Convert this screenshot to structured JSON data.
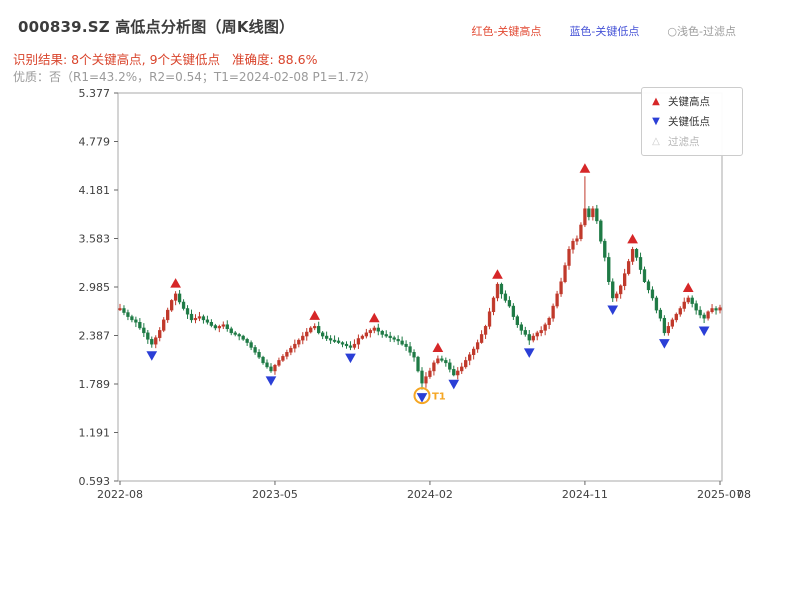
{
  "header": {
    "title": "000839.SZ 高低点分析图（周K线图）",
    "legend_top": [
      {
        "label": "红色-关键高点",
        "color": "#e24a33"
      },
      {
        "label": "蓝色-关键低点",
        "color": "#4653d7"
      },
      {
        "label": "○浅色-过滤点",
        "color": "#9b9b9b"
      }
    ],
    "result_line": "识别结果: 8个关键高点, 9个关键低点",
    "accuracy_line": "准确度: 88.6%",
    "quality_line": "优质：否（R1=43.2%，R2=0.54；T1=2024-02-08 P1=1.72）"
  },
  "legend_box": {
    "items": [
      {
        "label": "关键高点",
        "glyph": "▲",
        "color": "#d62728"
      },
      {
        "label": "关键低点",
        "glyph": "▼",
        "color": "#2b3fd6"
      },
      {
        "label": "过滤点",
        "glyph": "△",
        "color": "#c9c9c9"
      }
    ]
  },
  "chart_data": {
    "type": "candlestick",
    "title": "000839.SZ 高低点分析图（周K线图）",
    "ylim": [
      0.593,
      5.377
    ],
    "y_ticks": [
      5.377,
      4.779,
      4.181,
      3.583,
      2.985,
      2.387,
      1.789,
      1.191,
      0.593
    ],
    "x_ticks": [
      {
        "i": 0,
        "label": "2022-08"
      },
      {
        "i": 39,
        "label": "2023-05"
      },
      {
        "i": 78,
        "label": "2024-02"
      },
      {
        "i": 117,
        "label": "2024-11"
      },
      {
        "i": 151,
        "label": "2025-07"
      }
    ],
    "x_end_label": "08",
    "up_color": "#c0392b",
    "down_color": "#1e7a45",
    "closes": [
      2.72,
      2.67,
      2.62,
      2.58,
      2.55,
      2.48,
      2.42,
      2.34,
      2.28,
      2.36,
      2.45,
      2.58,
      2.7,
      2.82,
      2.9,
      2.8,
      2.72,
      2.65,
      2.58,
      2.6,
      2.62,
      2.58,
      2.55,
      2.51,
      2.48,
      2.5,
      2.52,
      2.47,
      2.42,
      2.4,
      2.38,
      2.34,
      2.3,
      2.24,
      2.18,
      2.12,
      2.05,
      2.0,
      1.95,
      2.02,
      2.08,
      2.13,
      2.18,
      2.23,
      2.28,
      2.33,
      2.38,
      2.43,
      2.48,
      2.5,
      2.42,
      2.38,
      2.35,
      2.33,
      2.32,
      2.3,
      2.28,
      2.26,
      2.24,
      2.28,
      2.35,
      2.38,
      2.42,
      2.45,
      2.48,
      2.44,
      2.4,
      2.38,
      2.36,
      2.34,
      2.32,
      2.28,
      2.25,
      2.18,
      2.12,
      1.95,
      1.8,
      1.88,
      1.95,
      2.05,
      2.1,
      2.08,
      2.05,
      1.97,
      1.9,
      1.95,
      2.0,
      2.08,
      2.15,
      2.22,
      2.3,
      2.4,
      2.5,
      2.68,
      2.85,
      3.02,
      2.9,
      2.82,
      2.75,
      2.62,
      2.52,
      2.45,
      2.4,
      2.33,
      2.38,
      2.42,
      2.45,
      2.52,
      2.6,
      2.75,
      2.9,
      3.05,
      3.25,
      3.45,
      3.55,
      3.58,
      3.75,
      3.95,
      3.85,
      3.95,
      3.8,
      3.55,
      3.35,
      3.05,
      2.85,
      2.9,
      3.0,
      3.15,
      3.3,
      3.45,
      3.35,
      3.2,
      3.05,
      2.95,
      2.85,
      2.7,
      2.6,
      2.42,
      2.5,
      2.58,
      2.65,
      2.72,
      2.8,
      2.85,
      2.78,
      2.7,
      2.64,
      2.6,
      2.68,
      2.72,
      2.7,
      2.73
    ],
    "wick_overrides": {
      "76": {
        "low": 1.72
      },
      "117": {
        "high": 4.35
      }
    },
    "markers": {
      "high_color": "#d62728",
      "low_color": "#2b3fd6",
      "highs": [
        14,
        49,
        64,
        80,
        95,
        117,
        129,
        143
      ],
      "lows": [
        8,
        38,
        58,
        76,
        84,
        103,
        124,
        137,
        147
      ]
    },
    "t1": {
      "index": 76,
      "price": 1.72,
      "label": "T1",
      "color": "#f5a623"
    }
  }
}
